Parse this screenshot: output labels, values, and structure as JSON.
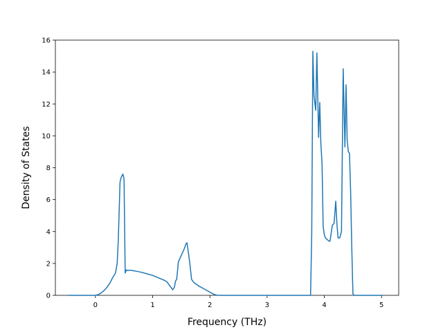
{
  "chart_data": {
    "type": "line",
    "title": "",
    "xlabel": "Frequency (THz)",
    "ylabel": "Density of States",
    "xlim": [
      -0.7,
      5.3
    ],
    "ylim": [
      0,
      16
    ],
    "xticks": [
      0,
      1,
      2,
      3,
      4,
      5
    ],
    "yticks": [
      0,
      2,
      4,
      6,
      8,
      10,
      12,
      14,
      16
    ],
    "grid": false,
    "legend": "none",
    "series_color": "#1f77b4",
    "series": [
      {
        "x": [
          -0.48,
          -0.3,
          -0.1,
          0.0,
          0.05,
          0.1,
          0.15,
          0.2,
          0.25,
          0.3,
          0.35,
          0.38,
          0.4,
          0.43,
          0.45,
          0.48,
          0.5,
          0.52,
          0.54,
          0.56,
          0.6,
          0.65,
          0.7,
          0.8,
          0.9,
          1.0,
          1.1,
          1.2,
          1.25,
          1.3,
          1.35,
          1.38,
          1.4,
          1.42,
          1.45,
          1.5,
          1.55,
          1.58,
          1.6,
          1.62,
          1.65,
          1.68,
          1.72,
          1.8,
          1.9,
          2.0,
          2.05,
          2.1,
          2.15,
          2.5,
          3.0,
          3.5,
          3.76,
          3.78,
          3.8,
          3.82,
          3.85,
          3.87,
          3.9,
          3.92,
          3.94,
          3.96,
          3.98,
          4.0,
          4.02,
          4.05,
          4.08,
          4.1,
          4.14,
          4.17,
          4.2,
          4.22,
          4.24,
          4.27,
          4.3,
          4.33,
          4.36,
          4.38,
          4.4,
          4.42,
          4.44,
          4.46,
          4.48,
          4.5,
          4.52,
          4.55,
          4.58,
          4.6,
          4.62,
          4.8,
          5.0,
          5.02
        ],
        "y": [
          0,
          0,
          0,
          0,
          0.05,
          0.15,
          0.3,
          0.5,
          0.75,
          1.1,
          1.4,
          2.0,
          3.5,
          7.1,
          7.4,
          7.6,
          7.3,
          1.4,
          1.6,
          1.55,
          1.58,
          1.55,
          1.52,
          1.45,
          1.35,
          1.25,
          1.1,
          0.95,
          0.85,
          0.6,
          0.35,
          0.5,
          0.9,
          1.0,
          2.1,
          2.5,
          2.9,
          3.2,
          3.3,
          2.8,
          2.0,
          1.0,
          0.8,
          0.6,
          0.4,
          0.2,
          0.1,
          0.03,
          0,
          0,
          0,
          0,
          0,
          3.8,
          15.3,
          12.5,
          11.6,
          15.2,
          9.9,
          12.1,
          9.5,
          8.3,
          4.3,
          3.8,
          3.6,
          3.5,
          3.4,
          3.4,
          4.4,
          4.5,
          5.9,
          4.5,
          3.6,
          3.6,
          4.0,
          14.2,
          9.3,
          13.2,
          9.7,
          9.0,
          8.9,
          6.5,
          3.0,
          0.1,
          0,
          0,
          0,
          0,
          0,
          0,
          0,
          0
        ]
      }
    ]
  }
}
